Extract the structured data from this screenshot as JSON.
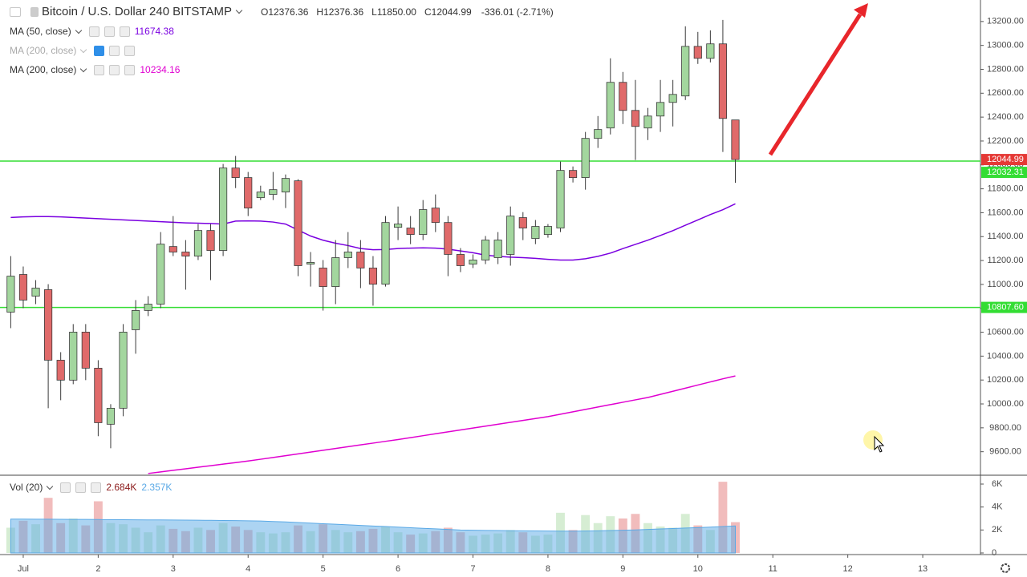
{
  "chart_data": {
    "type": "candlestick",
    "title": "Bitcoin / U.S. Dollar",
    "interval": "240",
    "exchange": "BITSTAMP",
    "ohlc_labels": [
      "O",
      "H",
      "L",
      "C"
    ],
    "ohlc_values": [
      "12376.36",
      "12376.36",
      "11850.00",
      "12044.99"
    ],
    "change": "-336.01 (-2.71%)",
    "x": [
      0.8333,
      1,
      1.1667,
      1.3333,
      1.5,
      1.6667,
      1.8333,
      2,
      2.1667,
      2.3333,
      2.5,
      2.6667,
      2.8333,
      3,
      3.1667,
      3.3333,
      3.5,
      3.6667,
      3.8333,
      4,
      4.1667,
      4.3333,
      4.5,
      4.6667,
      4.8333,
      5,
      5.1667,
      5.3333,
      5.5,
      5.6667,
      5.8333,
      6,
      6.1667,
      6.3333,
      6.5,
      6.6667,
      6.8333,
      7,
      7.1667,
      7.3333,
      7.5,
      7.6667,
      7.8333,
      8,
      8.1667,
      8.3333,
      8.5,
      8.6667,
      8.8333,
      9,
      9.1667,
      9.3333,
      9.5,
      9.6667,
      9.8333,
      10,
      10.1667,
      10.3333,
      10.5
    ],
    "open": [
      10768,
      11083,
      10902,
      10956,
      10366,
      10199,
      10601,
      10299,
      9830,
      9964,
      10621,
      10782,
      10835,
      11317,
      11271,
      11237,
      11451,
      11284,
      11974,
      11894,
      11726,
      11753,
      11773,
      11867,
      11170,
      11137,
      10982,
      11224,
      11271,
      11137,
      11002,
      11478,
      11472,
      11418,
      11639,
      11518,
      11251,
      11170,
      11204,
      11224,
      11251,
      11559,
      11384,
      11418,
      11472,
      11954,
      11894,
      12222,
      12309,
      12691,
      12456,
      12309,
      12409,
      12523,
      12577,
      12992,
      12892,
      13013,
      12376.36
    ],
    "high": [
      11237,
      11150,
      11036,
      11002,
      10433,
      10668,
      10668,
      10366,
      9998,
      10668,
      10869,
      10902,
      11438,
      11572,
      11371,
      11505,
      11505,
      12008,
      12075,
      11941,
      11826,
      11941,
      11920,
      11880,
      11271,
      11204,
      11371,
      11438,
      11371,
      11237,
      11572,
      11652,
      11572,
      11706,
      11753,
      11572,
      11304,
      11251,
      11405,
      11438,
      11652,
      11605,
      11539,
      11505,
      12028,
      11987,
      12276,
      12409,
      12892,
      12778,
      12711,
      12477,
      12711,
      12711,
      13160,
      13113,
      13126,
      13213,
      12376.36
    ],
    "low": [
      10634,
      10801,
      10835,
      9964,
      10031,
      10165,
      10199,
      9730,
      9629,
      9897,
      10420,
      10735,
      10801,
      11237,
      10956,
      11204,
      11036,
      11237,
      11806,
      11572,
      11706,
      11706,
      11639,
      11069,
      10982,
      10781,
      10835,
      11137,
      10969,
      10822,
      10982,
      11371,
      11337,
      11371,
      11438,
      11069,
      11103,
      11137,
      11170,
      11170,
      11157,
      11371,
      11337,
      11391,
      11438,
      11853,
      11793,
      12142,
      12255,
      12342,
      12041,
      12208,
      12276,
      12322,
      12543,
      12845,
      12858,
      12108,
      11850
    ],
    "close": [
      11069,
      10869,
      10969,
      10366,
      10199,
      10601,
      10299,
      9843,
      9964,
      10601,
      10782,
      10835,
      11337,
      11271,
      11237,
      11451,
      11284,
      11974,
      11894,
      11639,
      11773,
      11793,
      11887,
      11157,
      11184,
      10982,
      11224,
      11271,
      11137,
      11002,
      11518,
      11505,
      11418,
      11626,
      11518,
      11251,
      11157,
      11204,
      11371,
      11371,
      11572,
      11472,
      11485,
      11485,
      11954,
      11894,
      12222,
      12296,
      12691,
      12456,
      12322,
      12409,
      12523,
      12590,
      12992,
      12892,
      13013,
      12389,
      12044.99
    ],
    "up_color": "#a3d69e",
    "down_color": "#e06a6a",
    "outline_color": "#3a3a3a",
    "overlays": [
      {
        "name": "MA (50, close)",
        "color": "#7a00e0",
        "visible": true,
        "values": [
          11560,
          11565,
          11568,
          11568,
          11565,
          11560,
          11555,
          11550,
          11545,
          11540,
          11535,
          11530,
          11525,
          11520,
          11515,
          11512,
          11510,
          11505,
          11530,
          11532,
          11530,
          11522,
          11505,
          11455,
          11405,
          11370,
          11345,
          11325,
          11300,
          11290,
          11292,
          11300,
          11304,
          11306,
          11304,
          11295,
          11280,
          11265,
          11245,
          11235,
          11228,
          11224,
          11218,
          11210,
          11204,
          11204,
          11215,
          11235,
          11262,
          11300,
          11335,
          11370,
          11410,
          11450,
          11495,
          11540,
          11585,
          11625,
          11674.38
        ]
      },
      {
        "name": "MA (200, close)",
        "color": "#999999",
        "visible": false
      },
      {
        "name": "MA (200, close)",
        "color": "#e000d0",
        "visible": true,
        "values": [
          null,
          null,
          null,
          null,
          null,
          null,
          null,
          null,
          null,
          null,
          null,
          9418,
          9431,
          9444,
          9457,
          9470,
          9483,
          9496,
          9509,
          9522,
          9537,
          9552,
          9567,
          9582,
          9597,
          9612,
          9627,
          9642,
          9657,
          9672,
          9687,
          9702,
          9718,
          9734,
          9750,
          9766,
          9782,
          9798,
          9814,
          9830,
          9846,
          9862,
          9878,
          9894,
          9914,
          9934,
          9954,
          9974,
          9994,
          10014,
          10034,
          10054,
          10080,
          10106,
          10132,
          10158,
          10184,
          10210,
          10234.16
        ]
      }
    ],
    "levels": [
      {
        "value": 12032.31,
        "color": "#33dd33"
      },
      {
        "value": 10807.6,
        "label": "10807.60",
        "color": "#33dd33"
      }
    ],
    "last_price_color": "#e53935",
    "xlim": [
      0.69,
      13.77
    ],
    "xticks": [
      {
        "value": 1,
        "label": "Jul"
      },
      2,
      3,
      4,
      5,
      6,
      7,
      8,
      9,
      10,
      11,
      12,
      13
    ],
    "ylim": [
      9410,
      13380
    ],
    "yticks": [
      {
        "value": 13200,
        "label": "13200.00"
      },
      {
        "value": 13000,
        "label": "13000.00"
      },
      {
        "value": 12800,
        "label": "12800.00"
      },
      {
        "value": 12600,
        "label": "12600.00"
      },
      {
        "value": 12400,
        "label": "12400.00"
      },
      {
        "value": 12200,
        "label": "12200.00"
      },
      {
        "value": 12000,
        "label": "12000.00"
      },
      {
        "value": 11800,
        "label": "11800.00"
      },
      {
        "value": 11600,
        "label": "11600.00"
      },
      {
        "value": 11400,
        "label": "11400.00"
      },
      {
        "value": 11200,
        "label": "11200.00"
      },
      {
        "value": 11000,
        "label": "11000.00"
      },
      {
        "value": 10800,
        "label": "10800.00"
      },
      {
        "value": 10600,
        "label": "10600.00"
      },
      {
        "value": 10400,
        "label": "10400.00"
      },
      {
        "value": 10200,
        "label": "10200.00"
      },
      {
        "value": 10000,
        "label": "10000.00"
      },
      {
        "value": 9800,
        "label": "9800.00"
      },
      {
        "value": 9600,
        "label": "9600.00"
      }
    ],
    "volume": {
      "name": "Vol (20)",
      "values": [
        2200,
        2800,
        2500,
        4800,
        2600,
        3000,
        2400,
        4500,
        2600,
        2500,
        2200,
        1800,
        2400,
        2100,
        1900,
        2200,
        2000,
        2600,
        2300,
        2000,
        1800,
        1700,
        1800,
        2400,
        1900,
        2500,
        2000,
        1800,
        1900,
        2100,
        2300,
        1800,
        1600,
        1700,
        1900,
        2200,
        1800,
        1500,
        1600,
        1700,
        2000,
        1800,
        1500,
        1600,
        3500,
        2000,
        3300,
        2600,
        3200,
        3000,
        3400,
        2600,
        2300,
        2200,
        3400,
        2400,
        2000,
        6200,
        2684
      ],
      "last_value_label": "2.684K",
      "value_label_color": "#8b1a1a",
      "ma_values": [
        2950,
        2950,
        2940,
        2940,
        2930,
        2920,
        2920,
        2910,
        2900,
        2900,
        2890,
        2880,
        2880,
        2870,
        2860,
        2850,
        2840,
        2830,
        2820,
        2800,
        2780,
        2740,
        2700,
        2650,
        2600,
        2550,
        2500,
        2450,
        2400,
        2350,
        2300,
        2250,
        2200,
        2150,
        2100,
        2050,
        2000,
        1980,
        1960,
        1950,
        1940,
        1930,
        1920,
        1910,
        1900,
        1900,
        1910,
        1930,
        1950,
        1980,
        2010,
        2050,
        2090,
        2130,
        2170,
        2210,
        2250,
        2300,
        2357
      ],
      "ma_last_value_label": "2.357K",
      "ma_color": "#5aa9e6",
      "ylim": [
        0,
        6420
      ],
      "yticks": [
        {
          "value": 6000,
          "label": "6K"
        },
        {
          "value": 4000,
          "label": "4K"
        },
        {
          "value": 2000,
          "label": "2K"
        },
        0
      ]
    }
  }
}
